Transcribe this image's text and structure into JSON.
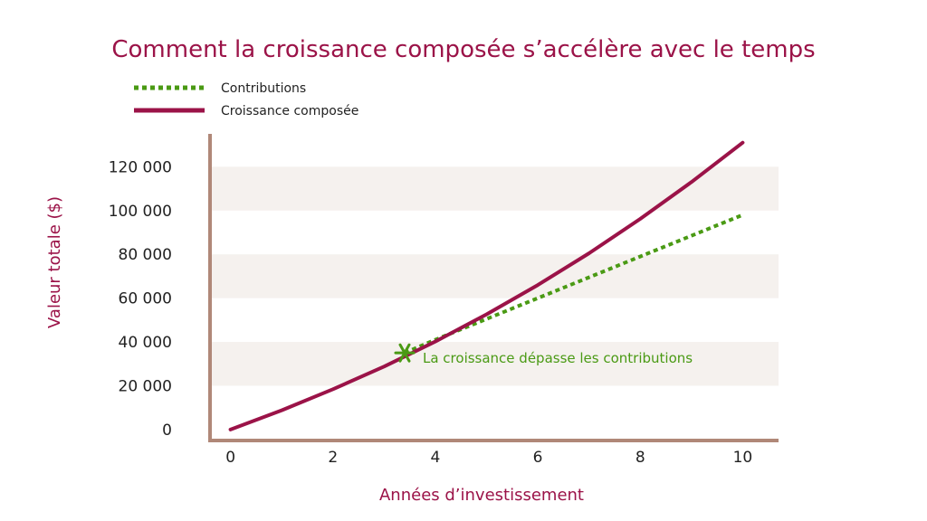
{
  "chart_data": {
    "type": "line",
    "title": "Comment la croissance composée s’accélère avec le temps",
    "xlabel": "Années d’investissement",
    "ylabel": "Valeur totale ($)",
    "xlim": [
      -0.4,
      10.7
    ],
    "ylim": [
      -5000,
      135000
    ],
    "x_ticks": [
      0,
      2,
      4,
      6,
      8,
      10
    ],
    "y_ticks": [
      0,
      20000,
      40000,
      60000,
      80000,
      100000,
      120000
    ],
    "y_tick_labels": [
      "0",
      "20 000",
      "40 000",
      "60 000",
      "80 000",
      "100 000",
      "120 000"
    ],
    "grid": "alternating horizontal bands",
    "legend_position": "top-left",
    "series": [
      {
        "name": "Contributions",
        "style": "dotted",
        "color": "#4a9a14",
        "x": [
          3.4,
          4,
          5,
          6,
          7,
          8,
          9,
          10
        ],
        "y": [
          35000,
          41000,
          50500,
          60000,
          69500,
          79000,
          88500,
          98000
        ]
      },
      {
        "name": "Croissance composée",
        "style": "solid",
        "color": "#9b1348",
        "x": [
          0,
          1,
          2,
          3,
          4,
          5,
          6,
          7,
          8,
          9,
          10
        ],
        "y": [
          0,
          8800,
          18400,
          28800,
          40200,
          52600,
          66000,
          80500,
          96200,
          113000,
          131000
        ]
      }
    ],
    "annotations": [
      {
        "text": "La croissance dépasse les contributions",
        "x": 3.4,
        "y": 35000,
        "marker": "star",
        "color": "#4a9a14"
      }
    ]
  },
  "colors": {
    "title": "#9b1348",
    "axis": "#b08878",
    "band": "#f5f1ee",
    "contributions": "#4a9a14",
    "growth": "#9b1348"
  }
}
